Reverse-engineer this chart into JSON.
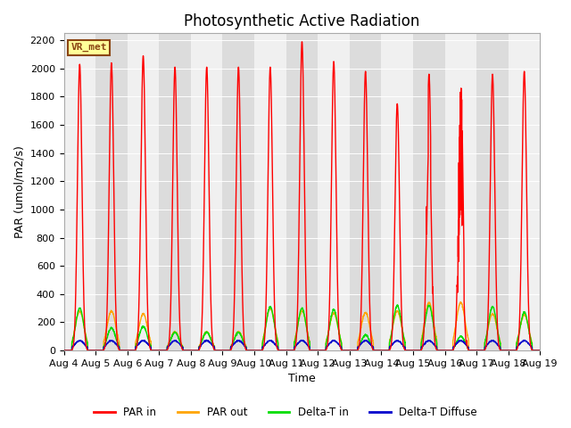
{
  "title": "Photosynthetic Active Radiation",
  "ylabel": "PAR (umol/m2/s)",
  "xlabel": "Time",
  "ylim": [
    0,
    2250
  ],
  "xlim_start": 4.0,
  "xlim_end": 19.0,
  "xtick_labels": [
    "Aug 4",
    "Aug 5",
    "Aug 6",
    "Aug 7",
    "Aug 8",
    "Aug 9",
    "Aug 10",
    "Aug 11",
    "Aug 12",
    "Aug 13",
    "Aug 14",
    "Aug 15",
    "Aug 16",
    "Aug 17",
    "Aug 18",
    "Aug 19"
  ],
  "xtick_positions": [
    4,
    5,
    6,
    7,
    8,
    9,
    10,
    11,
    12,
    13,
    14,
    15,
    16,
    17,
    18,
    19
  ],
  "ytick_positions": [
    0,
    200,
    400,
    600,
    800,
    1000,
    1200,
    1400,
    1600,
    1800,
    2000,
    2200
  ],
  "background_color": "#ffffff",
  "plot_bg_odd": "#dcdcdc",
  "plot_bg_even": "#f0f0f0",
  "grid_color": "#ffffff",
  "station_label": "VR_met",
  "station_label_bg": "#ffff99",
  "station_label_border": "#8B4513",
  "line_colors": {
    "PAR in": "#ff0000",
    "PAR out": "#ffa500",
    "Delta-T in": "#00dd00",
    "Delta-T Diffuse": "#0000cc"
  },
  "legend_labels": [
    "PAR in",
    "PAR out",
    "Delta-T in",
    "Delta-T Diffuse"
  ],
  "title_fontsize": 12,
  "axis_fontsize": 9,
  "tick_fontsize": 8,
  "par_peaks": [
    2030,
    2040,
    2090,
    2010,
    2010,
    2010,
    2010,
    2190,
    2050,
    1980,
    1750,
    1960,
    1960,
    1960,
    1980
  ],
  "par_out_peaks": [
    280,
    280,
    260,
    130,
    130,
    130,
    300,
    280,
    265,
    270,
    280,
    340,
    340,
    260,
    255
  ],
  "delta_t_in_peaks": [
    300,
    160,
    170,
    130,
    130,
    130,
    310,
    300,
    290,
    110,
    320,
    320,
    100,
    310,
    270
  ],
  "delta_t_diff_peaks": [
    70,
    70,
    70,
    70,
    70,
    70,
    70,
    70,
    70,
    70,
    70,
    70,
    70,
    70,
    70
  ]
}
